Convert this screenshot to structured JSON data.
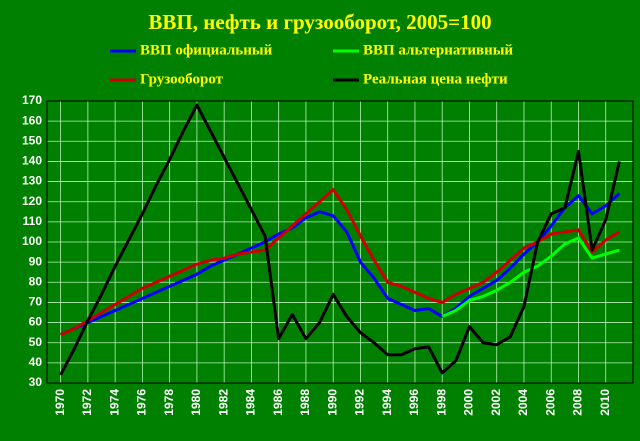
{
  "chart_data": {
    "type": "line",
    "title": "ВВП, нефть и грузооборот, 2005=100",
    "x": [
      1970,
      1971,
      1972,
      1973,
      1974,
      1975,
      1976,
      1977,
      1978,
      1979,
      1980,
      1981,
      1982,
      1983,
      1984,
      1985,
      1986,
      1987,
      1988,
      1989,
      1990,
      1991,
      1992,
      1993,
      1994,
      1995,
      1996,
      1997,
      1998,
      1999,
      2000,
      2001,
      2002,
      2003,
      2004,
      2005,
      2006,
      2007,
      2008,
      2009,
      2010,
      2011
    ],
    "series": [
      {
        "name": "ВВП официальный",
        "color": "#0000ff",
        "values": [
          54,
          57,
          60,
          63,
          66,
          69,
          72,
          75,
          78,
          81,
          84,
          88,
          91,
          94,
          97,
          100,
          104,
          107,
          112,
          115,
          113,
          105,
          90,
          82,
          72,
          69,
          66,
          67,
          63,
          67,
          73,
          77,
          81,
          87,
          94,
          100,
          108,
          117,
          123,
          114,
          118,
          124
        ]
      },
      {
        "name": "ВВП альтернативный",
        "color": "#00ff00",
        "values": [
          null,
          null,
          null,
          null,
          null,
          null,
          null,
          null,
          null,
          null,
          null,
          null,
          null,
          null,
          null,
          null,
          null,
          null,
          null,
          null,
          null,
          null,
          null,
          null,
          null,
          null,
          null,
          null,
          63,
          66,
          71,
          73,
          76,
          80,
          85,
          88,
          93,
          99,
          102,
          92,
          94,
          96
        ]
      },
      {
        "name": "Грузооборот",
        "color": "#cc0000",
        "values": [
          54,
          57,
          61,
          65,
          69,
          73,
          77,
          80,
          83,
          86,
          89,
          91,
          92,
          94,
          95,
          96,
          102,
          108,
          114,
          120,
          126,
          116,
          103,
          91,
          80,
          78,
          75,
          72,
          70,
          74,
          77,
          80,
          85,
          91,
          97,
          100,
          104,
          105,
          106,
          95,
          101,
          105
        ]
      },
      {
        "name": "Реальная цена нефти",
        "color": "#000000",
        "values": [
          34,
          47,
          61,
          74,
          88,
          101,
          114,
          128,
          141,
          155,
          168,
          155,
          142,
          129,
          116,
          103,
          52,
          64,
          52,
          60,
          74,
          63,
          55,
          50,
          44,
          44,
          47,
          48,
          35,
          41,
          58,
          50,
          49,
          53,
          68,
          100,
          114,
          117,
          145,
          96,
          111,
          140
        ]
      }
    ],
    "xlim": [
      1969,
      2012
    ],
    "xticks": [
      1970,
      1972,
      1974,
      1976,
      1978,
      1980,
      1982,
      1984,
      1986,
      1988,
      1990,
      1992,
      1994,
      1996,
      1998,
      2000,
      2002,
      2004,
      2006,
      2008,
      2010
    ],
    "ylim": [
      30,
      170
    ],
    "yticks": [
      30,
      40,
      50,
      60,
      70,
      80,
      90,
      100,
      110,
      120,
      130,
      140,
      150,
      160,
      170
    ],
    "grid": true
  }
}
